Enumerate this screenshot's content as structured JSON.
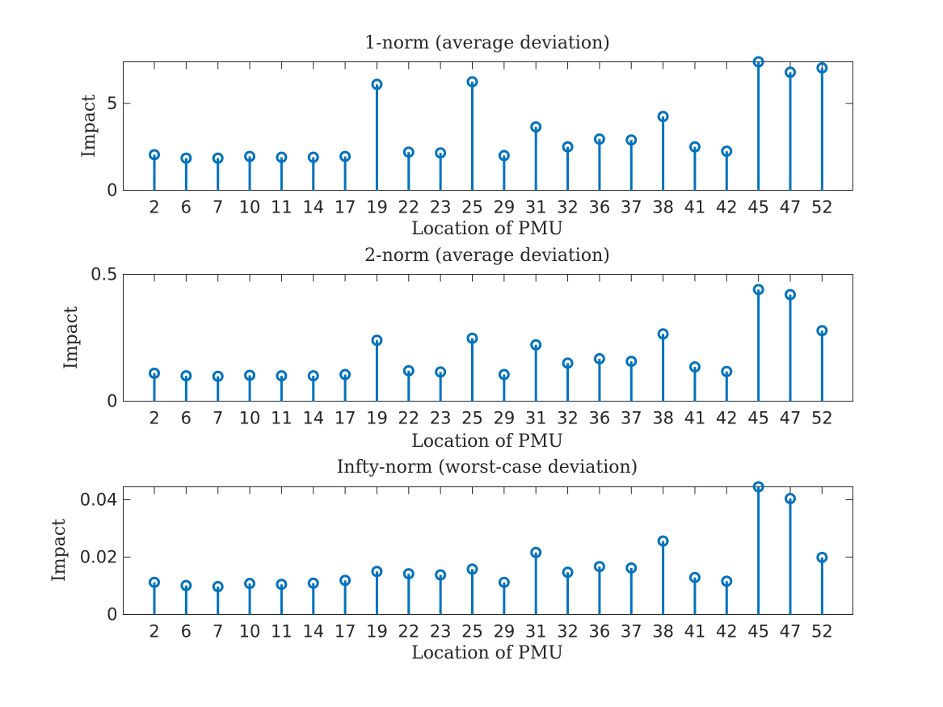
{
  "chart_data": [
    {
      "type": "stem",
      "title": "1-norm (average deviation)",
      "xlabel": "Location of PMU",
      "ylabel": "Impact",
      "categories": [
        "2",
        "6",
        "7",
        "10",
        "11",
        "14",
        "17",
        "19",
        "22",
        "23",
        "25",
        "29",
        "31",
        "32",
        "36",
        "37",
        "38",
        "41",
        "42",
        "45",
        "47",
        "52"
      ],
      "values": [
        2.05,
        1.85,
        1.85,
        1.95,
        1.9,
        1.9,
        1.95,
        6.1,
        2.2,
        2.15,
        6.25,
        2.0,
        3.65,
        2.5,
        2.95,
        2.9,
        4.25,
        2.5,
        2.25,
        7.4,
        6.8,
        7.05
      ],
      "ylim": [
        0,
        7.4
      ],
      "yticks": [
        0,
        5
      ],
      "ytick_labels": [
        "0",
        "5"
      ],
      "color": "#0072BD",
      "grid": false
    },
    {
      "type": "stem",
      "title": "2-norm (average deviation)",
      "xlabel": "Location of PMU",
      "ylabel": "Impact",
      "categories": [
        "2",
        "6",
        "7",
        "10",
        "11",
        "14",
        "17",
        "19",
        "22",
        "23",
        "25",
        "29",
        "31",
        "32",
        "36",
        "37",
        "38",
        "41",
        "42",
        "45",
        "47",
        "52"
      ],
      "values": [
        0.11,
        0.1,
        0.098,
        0.102,
        0.1,
        0.1,
        0.105,
        0.24,
        0.12,
        0.115,
        0.248,
        0.105,
        0.222,
        0.15,
        0.167,
        0.157,
        0.265,
        0.135,
        0.117,
        0.44,
        0.42,
        0.278
      ],
      "ylim": [
        0,
        0.5
      ],
      "yticks": [
        0,
        0.5
      ],
      "ytick_labels": [
        "0",
        "0.5"
      ],
      "color": "#0072BD",
      "grid": false
    },
    {
      "type": "stem",
      "title": "Infty-norm (worst-case deviation)",
      "xlabel": "Location of PMU",
      "ylabel": "Impact",
      "categories": [
        "2",
        "6",
        "7",
        "10",
        "11",
        "14",
        "17",
        "19",
        "22",
        "23",
        "25",
        "29",
        "31",
        "32",
        "36",
        "37",
        "38",
        "41",
        "42",
        "45",
        "47",
        "52"
      ],
      "values": [
        0.0112,
        0.0101,
        0.0097,
        0.0108,
        0.0105,
        0.0109,
        0.0119,
        0.015,
        0.0142,
        0.0138,
        0.0158,
        0.0112,
        0.0216,
        0.0147,
        0.0167,
        0.0162,
        0.0256,
        0.0129,
        0.0116,
        0.0445,
        0.0404,
        0.0199
      ],
      "ylim": [
        0,
        0.0445
      ],
      "yticks": [
        0,
        0.02,
        0.04
      ],
      "ytick_labels": [
        "0",
        "0.02",
        "0.04"
      ],
      "color": "#0072BD",
      "grid": false
    }
  ]
}
